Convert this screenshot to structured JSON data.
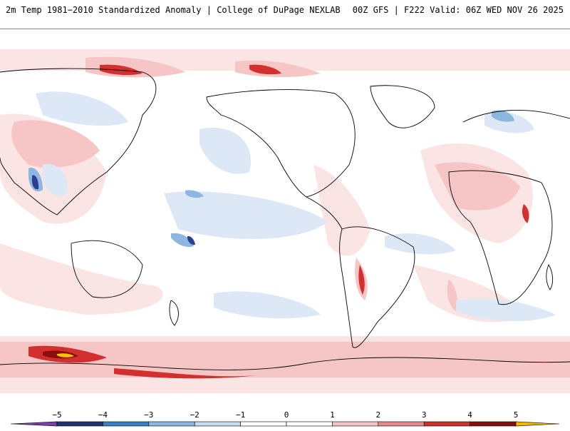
{
  "header": {
    "left": "2m Temp 1981−2010 Standardized Anomaly | College of DuPage NEXLAB",
    "right": "00Z GFS | F222 Valid: 06Z WED NOV 26 2025"
  },
  "map": {
    "variable": "2m temperature standardized anomaly",
    "projection": "equirectangular, Pacific-centered",
    "colors": {
      "strong_warm": "#a50f15",
      "warm": "#e15759",
      "light_warm": "#f6c6c6",
      "faint_warm": "#fbe4e4",
      "faint_cool": "#dce8f5",
      "light_cool": "#b9d3ee",
      "cool": "#4a90d9",
      "strong_cool": "#2c3e8f",
      "extreme_warm": "#f5c400",
      "coastline": "#000000"
    }
  },
  "colorbar": {
    "ticks": [
      "−5",
      "−4",
      "−3",
      "−2",
      "−1",
      "0",
      "1",
      "2",
      "3",
      "4",
      "5"
    ],
    "colors": [
      "#7b3fa6",
      "#23326f",
      "#3a7fc1",
      "#8db7e0",
      "#c8daf0",
      "#ffffff",
      "#ffffff",
      "#f3c2c2",
      "#e38b8b",
      "#d42f2f",
      "#8b0d0d",
      "#f5b800"
    ]
  }
}
